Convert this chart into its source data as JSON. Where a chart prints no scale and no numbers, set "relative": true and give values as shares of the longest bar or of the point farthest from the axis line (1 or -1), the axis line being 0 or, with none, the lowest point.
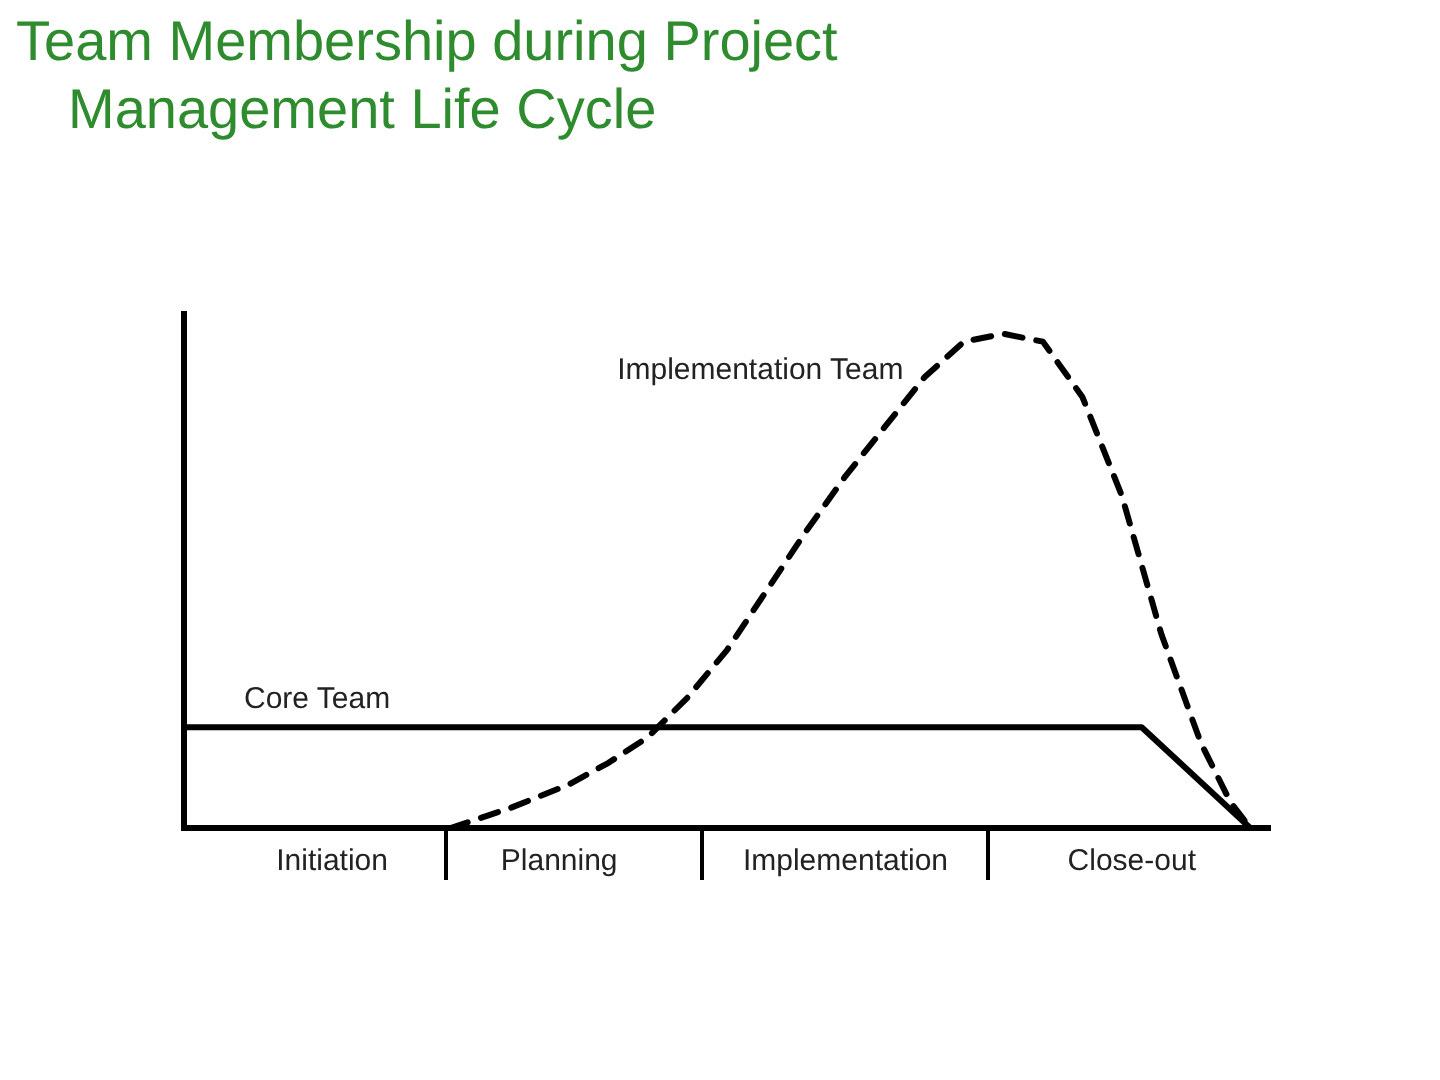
{
  "chart_data": {
    "type": "line",
    "title": "Team Membership during Project Management Life Cycle",
    "relative": true,
    "grid": false,
    "legend": false,
    "marker": "none",
    "categories": [
      null,
      null,
      null,
      null,
      null,
      null,
      null,
      null,
      null,
      null,
      null,
      null,
      null,
      null,
      null,
      "Initiation",
      null,
      null,
      null,
      null,
      null,
      null,
      null,
      null,
      null,
      null,
      null,
      null,
      null,
      null,
      null,
      null,
      null,
      null,
      null,
      null,
      null,
      null,
      "Planning",
      null,
      null,
      null,
      null,
      null,
      null,
      null,
      null,
      null,
      null,
      null,
      null,
      null,
      null,
      null,
      null,
      null,
      null,
      null,
      null,
      null,
      null,
      null,
      null,
      null,
      null,
      null,
      null,
      "Implementation",
      null,
      null,
      null,
      null,
      null,
      null,
      null,
      null,
      null,
      null,
      null,
      null,
      null,
      null,
      null,
      null,
      null,
      null,
      null,
      null,
      null,
      null,
      null,
      null,
      null,
      null,
      null,
      null,
      "Close-out",
      null,
      null,
      null,
      null,
      null,
      null,
      null,
      null,
      null,
      null,
      null,
      null,
      null,
      null
    ],
    "series": [
      {
        "name": "Core Team",
        "color": "#000000",
        "line_style": "solid",
        "values": [
          0.204,
          null,
          null,
          null,
          null,
          null,
          null,
          null,
          null,
          null,
          null,
          null,
          null,
          null,
          null,
          null,
          null,
          null,
          null,
          null,
          null,
          null,
          null,
          null,
          null,
          null,
          null,
          null,
          null,
          null,
          null,
          null,
          null,
          null,
          null,
          null,
          null,
          null,
          null,
          null,
          null,
          null,
          null,
          null,
          null,
          null,
          null,
          null,
          null,
          null,
          null,
          null,
          null,
          null,
          null,
          null,
          null,
          null,
          null,
          null,
          null,
          null,
          null,
          null,
          null,
          null,
          null,
          null,
          null,
          null,
          null,
          null,
          null,
          null,
          null,
          null,
          null,
          null,
          null,
          null,
          null,
          null,
          null,
          null,
          null,
          null,
          null,
          null,
          null,
          null,
          null,
          null,
          null,
          null,
          null,
          null,
          null,
          0.204,
          null,
          null,
          null,
          null,
          null,
          null,
          null,
          null,
          null,
          null,
          0,
          null,
          null
        ]
      },
      {
        "name": "Implementation Team",
        "color": "#000000",
        "line_style": "dashed",
        "values": [
          null,
          null,
          null,
          null,
          null,
          null,
          null,
          null,
          null,
          null,
          null,
          null,
          null,
          null,
          null,
          null,
          null,
          null,
          null,
          null,
          null,
          null,
          null,
          null,
          null,
          null,
          null,
          0,
          null,
          null,
          null,
          null,
          null,
          0.04,
          null,
          null,
          null,
          null,
          null,
          0.088,
          null,
          null,
          null,
          0.132,
          null,
          null,
          null,
          0.184,
          null,
          null,
          null,
          0.264,
          null,
          null,
          null,
          0.36,
          null,
          null,
          null,
          0.48,
          null,
          null,
          null,
          0.6,
          null,
          null,
          null,
          0.712,
          null,
          null,
          null,
          0.812,
          null,
          null,
          null,
          0.912,
          null,
          null,
          null,
          0.984,
          null,
          null,
          null,
          1,
          null,
          null,
          null,
          0.984,
          null,
          null,
          null,
          0.872,
          null,
          null,
          null,
          0.672,
          null,
          null,
          null,
          0.392,
          null,
          null,
          null,
          0.172,
          null,
          null,
          0.052,
          null,
          0,
          null,
          null
        ]
      }
    ]
  }
}
